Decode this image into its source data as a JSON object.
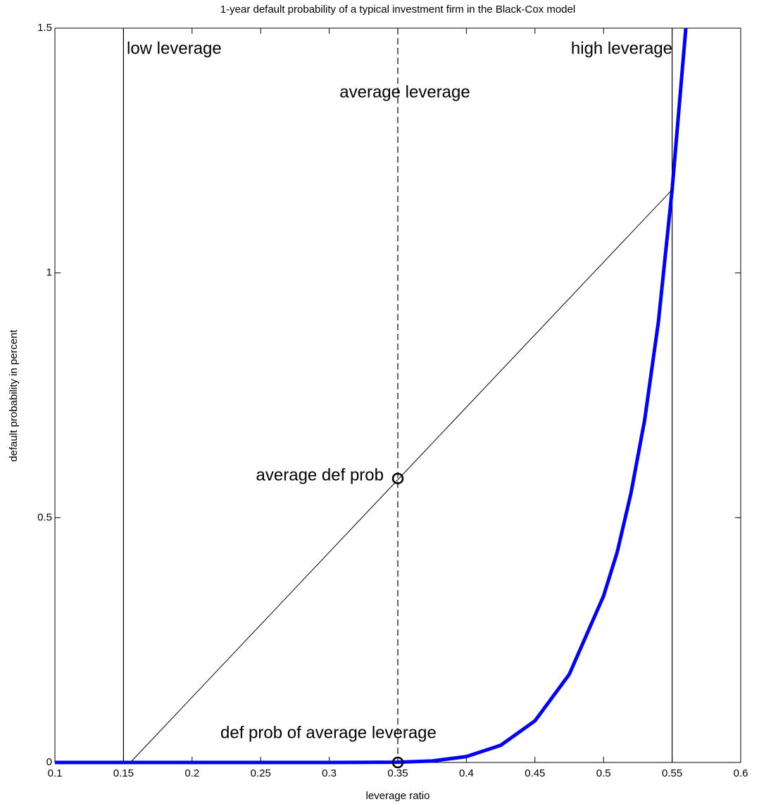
{
  "chart_data": {
    "type": "line",
    "title": "1-year default probability of a typical investment firm in the Black-Cox model",
    "xlabel": "leverage ratio",
    "ylabel": "default probability in percent",
    "xlim": [
      0.1,
      0.6
    ],
    "ylim": [
      0,
      1.5
    ],
    "xticks": [
      0.1,
      0.15,
      0.2,
      0.25,
      0.3,
      0.35,
      0.4,
      0.45,
      0.5,
      0.55,
      0.6
    ],
    "yticks": [
      0,
      0.5,
      1,
      1.5
    ],
    "grid": false,
    "reference_lines": [
      {
        "x": 0.15,
        "style": "solid"
      },
      {
        "x": 0.35,
        "style": "dashed"
      },
      {
        "x": 0.55,
        "style": "solid"
      }
    ],
    "series": [
      {
        "color": "#0000ff",
        "width": 5,
        "x": [
          0.1,
          0.15,
          0.2,
          0.25,
          0.3,
          0.35,
          0.375,
          0.4,
          0.425,
          0.45,
          0.475,
          0.5,
          0.51,
          0.52,
          0.53,
          0.54,
          0.55,
          0.56
        ],
        "values": [
          0,
          0,
          0,
          0,
          0,
          0.0005,
          0.003,
          0.012,
          0.035,
          0.085,
          0.18,
          0.34,
          0.43,
          0.55,
          0.7,
          0.9,
          1.17,
          1.5
        ]
      },
      {
        "color": "#000000",
        "width": 1,
        "x": [
          0.155,
          0.55
        ],
        "values": [
          0,
          1.17
        ]
      },
      {
        "color": "#000000",
        "marker": "o",
        "x": [
          0.35,
          0.35
        ],
        "values": [
          0.58,
          0
        ]
      }
    ],
    "annotations": [
      "low leverage",
      "high leverage",
      "average leverage",
      "average def prob",
      "def prob of average leverage"
    ]
  }
}
